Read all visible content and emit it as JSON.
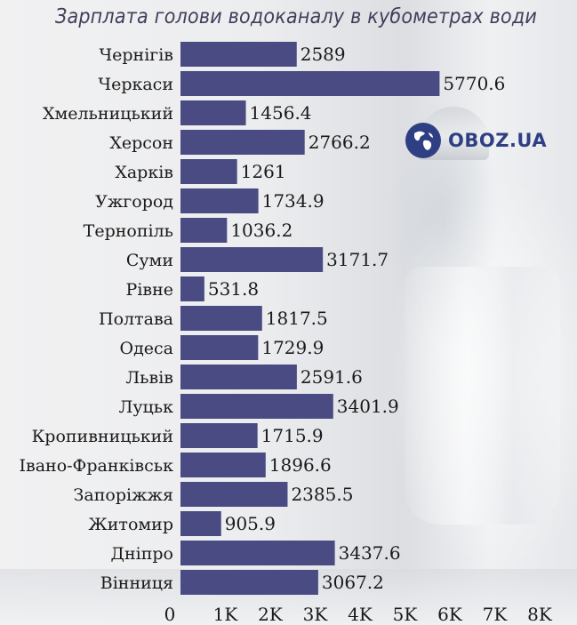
{
  "chart_data": {
    "type": "bar",
    "orientation": "horizontal",
    "title": "Зарплата голови водоканалу в кубометрах води",
    "categories": [
      "Чернігів",
      "Черкаси",
      "Хмельницький",
      "Херсон",
      "Харків",
      "Ужгород",
      "Тернопіль",
      "Суми",
      "Рівне",
      "Полтава",
      "Одеса",
      "Львів",
      "Луцьк",
      "Кропивницький",
      "Івано-Франківськ",
      "Запоріжжя",
      "Житомир",
      "Дніпро",
      "Вінниця"
    ],
    "values": [
      2589,
      5770.6,
      1456.4,
      2766.2,
      1261,
      1734.9,
      1036.2,
      3171.7,
      531.8,
      1817.5,
      1729.9,
      2591.6,
      3401.9,
      1715.9,
      1896.6,
      2385.5,
      905.9,
      3437.6,
      3067.2
    ],
    "value_labels": [
      "2589",
      "5770.6",
      "1456.4",
      "2766.2",
      "1261",
      "1734.9",
      "1036.2",
      "3171.7",
      "531.8",
      "1817.5",
      "1729.9",
      "2591.6",
      "3401.9",
      "1715.9",
      "1896.6",
      "2385.5",
      "905.9",
      "3437.6",
      "3067.2"
    ],
    "xticks": [
      0,
      1000,
      2000,
      3000,
      4000,
      5000,
      6000,
      7000,
      8000
    ],
    "xtick_labels": [
      "0",
      "1K",
      "2K",
      "3K",
      "4K",
      "5K",
      "6K",
      "7K",
      "8K"
    ],
    "xlim": [
      0,
      8000
    ],
    "grid": false,
    "bar_color": "#4a4b82"
  },
  "logo": {
    "text": "OBOZ.UA",
    "icon": "globe-icon",
    "color": "#2f3f84"
  }
}
